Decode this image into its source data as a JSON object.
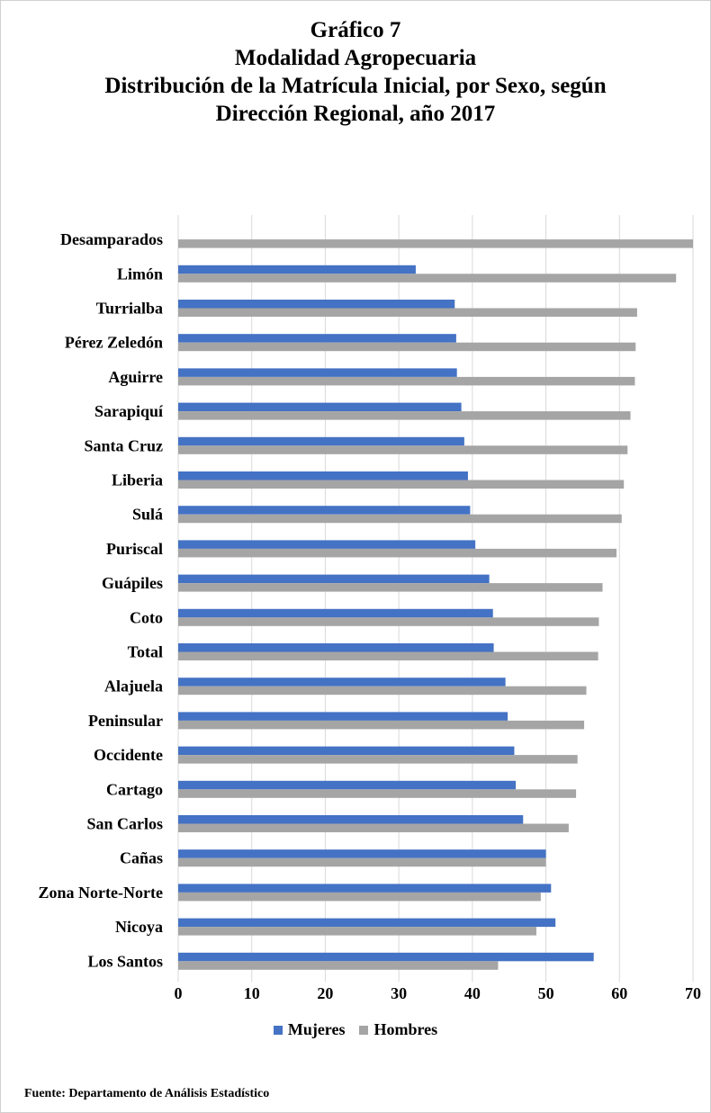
{
  "title_lines": [
    "Gráfico 7",
    "Modalidad Agropecuaria",
    "Distribución de la Matrícula Inicial, por Sexo, según",
    "Dirección Regional, año 2017"
  ],
  "source": "Fuente: Departamento de Análisis Estadístico",
  "colors": {
    "Mujeres": "#4472C4",
    "Hombres": "#A5A5A5",
    "grid": "#D9D9D9"
  },
  "chart_data": {
    "type": "bar",
    "orientation": "horizontal",
    "title": "Gráfico 7 Modalidad Agropecuaria Distribución de la Matrícula Inicial, por Sexo, según Dirección Regional, año 2017",
    "categories": [
      "Desamparados",
      "Limón",
      "Turrialba",
      "Pérez Zeledón",
      "Aguirre",
      "Sarapiquí",
      "Santa Cruz",
      "Liberia",
      "Sulá",
      "Puriscal",
      "Guápiles",
      "Coto",
      "Total",
      "Alajuela",
      "Peninsular",
      "Occidente",
      "Cartago",
      "San Carlos",
      "Cañas",
      "Zona  Norte-Norte",
      "Nicoya",
      "Los Santos"
    ],
    "series": [
      {
        "name": "Mujeres",
        "values": [
          0,
          32.3,
          37.6,
          37.8,
          37.9,
          38.5,
          38.9,
          39.4,
          39.7,
          40.4,
          42.3,
          42.8,
          42.9,
          44.5,
          44.8,
          45.7,
          45.9,
          46.9,
          50.0,
          50.7,
          51.3,
          56.5
        ]
      },
      {
        "name": "Hombres",
        "values": [
          70.0,
          67.7,
          62.4,
          62.2,
          62.1,
          61.5,
          61.1,
          60.6,
          60.3,
          59.6,
          57.7,
          57.2,
          57.1,
          55.5,
          55.2,
          54.3,
          54.1,
          53.1,
          50.0,
          49.3,
          48.7,
          43.5
        ]
      }
    ],
    "xticks": [
      "0",
      "10",
      "20",
      "30",
      "40",
      "50",
      "60",
      "70"
    ],
    "xlim": [
      0,
      70
    ],
    "grid": true,
    "legend": "bottom"
  }
}
